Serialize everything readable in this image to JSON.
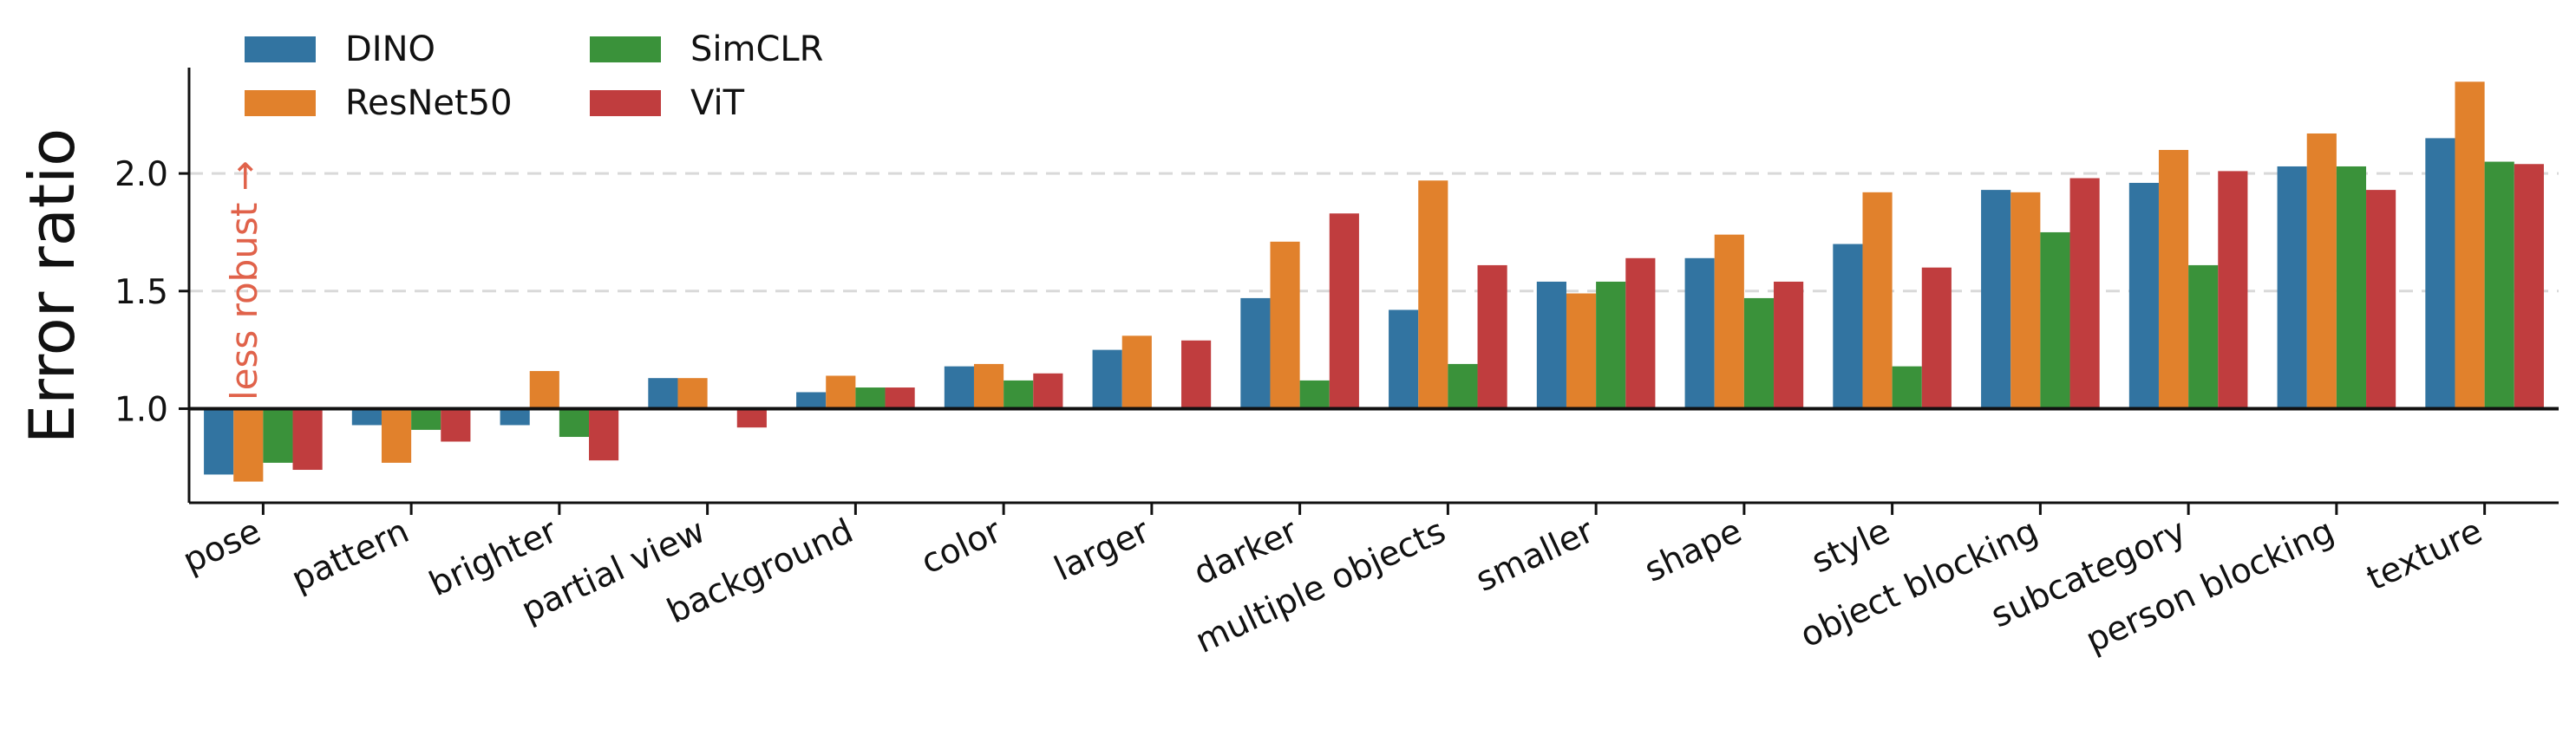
{
  "chart_data": {
    "type": "bar",
    "title": "",
    "xlabel": "",
    "ylabel": "Error ratio",
    "ylim": [
      0.6,
      2.45
    ],
    "yticks": [
      1.0,
      1.5,
      2.0
    ],
    "ytick_labels": [
      "1.0",
      "1.5",
      "2.0"
    ],
    "baseline": 1.0,
    "grid": "horizontal dashed",
    "legend_position": "top-left",
    "categories": [
      "pose",
      "pattern",
      "brighter",
      "partial view",
      "background",
      "color",
      "larger",
      "darker",
      "multiple objects",
      "smaller",
      "shape",
      "style",
      "object blocking",
      "subcategory",
      "person blocking",
      "texture"
    ],
    "series": [
      {
        "name": "DINO",
        "color": "#3274a1",
        "values": [
          0.72,
          0.93,
          0.93,
          1.13,
          1.07,
          1.18,
          1.25,
          1.47,
          1.42,
          1.54,
          1.64,
          1.7,
          1.93,
          1.96,
          2.03,
          2.15
        ]
      },
      {
        "name": "ResNet50",
        "color": "#e1812c",
        "values": [
          0.69,
          0.77,
          1.16,
          1.13,
          1.14,
          1.19,
          1.31,
          1.71,
          1.97,
          1.49,
          1.74,
          1.92,
          1.92,
          2.1,
          2.17,
          2.39
        ]
      },
      {
        "name": "SimCLR",
        "color": "#3a923a",
        "values": [
          0.77,
          0.91,
          0.88,
          1.0,
          1.09,
          1.12,
          1.0,
          1.12,
          1.19,
          1.54,
          1.47,
          1.18,
          1.75,
          1.61,
          2.03,
          2.05
        ]
      },
      {
        "name": "ViT",
        "color": "#c03d3e",
        "values": [
          0.74,
          0.86,
          0.78,
          0.92,
          1.09,
          1.15,
          1.29,
          1.83,
          1.61,
          1.64,
          1.54,
          1.6,
          1.98,
          2.01,
          1.93,
          2.04
        ]
      }
    ],
    "annotations": [
      {
        "text": "less robust →",
        "color": "#e0624a",
        "orientation": "vertical"
      }
    ]
  }
}
